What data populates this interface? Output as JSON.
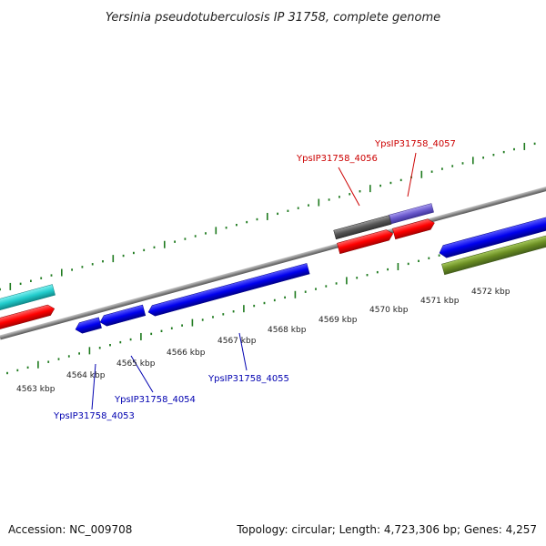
{
  "title": "Yersinia pseudotuberculosis IP 31758, complete genome",
  "footer": {
    "accession": "Accession: NC_009708",
    "summary": "Topology: circular; Length: 4,723,306 bp; Genes: 4,257"
  },
  "ticks": [
    {
      "label": "4563 kbp"
    },
    {
      "label": "4564 kbp"
    },
    {
      "label": "4565 kbp"
    },
    {
      "label": "4566 kbp"
    },
    {
      "label": "4567 kbp"
    },
    {
      "label": "4568 kbp"
    },
    {
      "label": "4569 kbp"
    },
    {
      "label": "4570 kbp"
    },
    {
      "label": "4571 kbp"
    },
    {
      "label": "4572 kbp"
    }
  ],
  "gene_labels": {
    "g4056": "YpsIP31758_4056",
    "g4057": "YpsIP31758_4057",
    "g4055": "YpsIP31758_4055",
    "g4054": "YpsIP31758_4054",
    "g4053": "YpsIP31758_4053"
  },
  "colors": {
    "backbone": "#8a8a8a",
    "tick_green": "#1e7a1e",
    "cds_red": "#ff0000",
    "cds_blue": "#0000ee",
    "cds_cyan": "#22cccc",
    "cds_gray": "#555555",
    "cds_purple": "#6a5acd",
    "cds_olive": "#6b8e23",
    "label_red": "#cc0000",
    "label_blue": "#0000b0"
  }
}
